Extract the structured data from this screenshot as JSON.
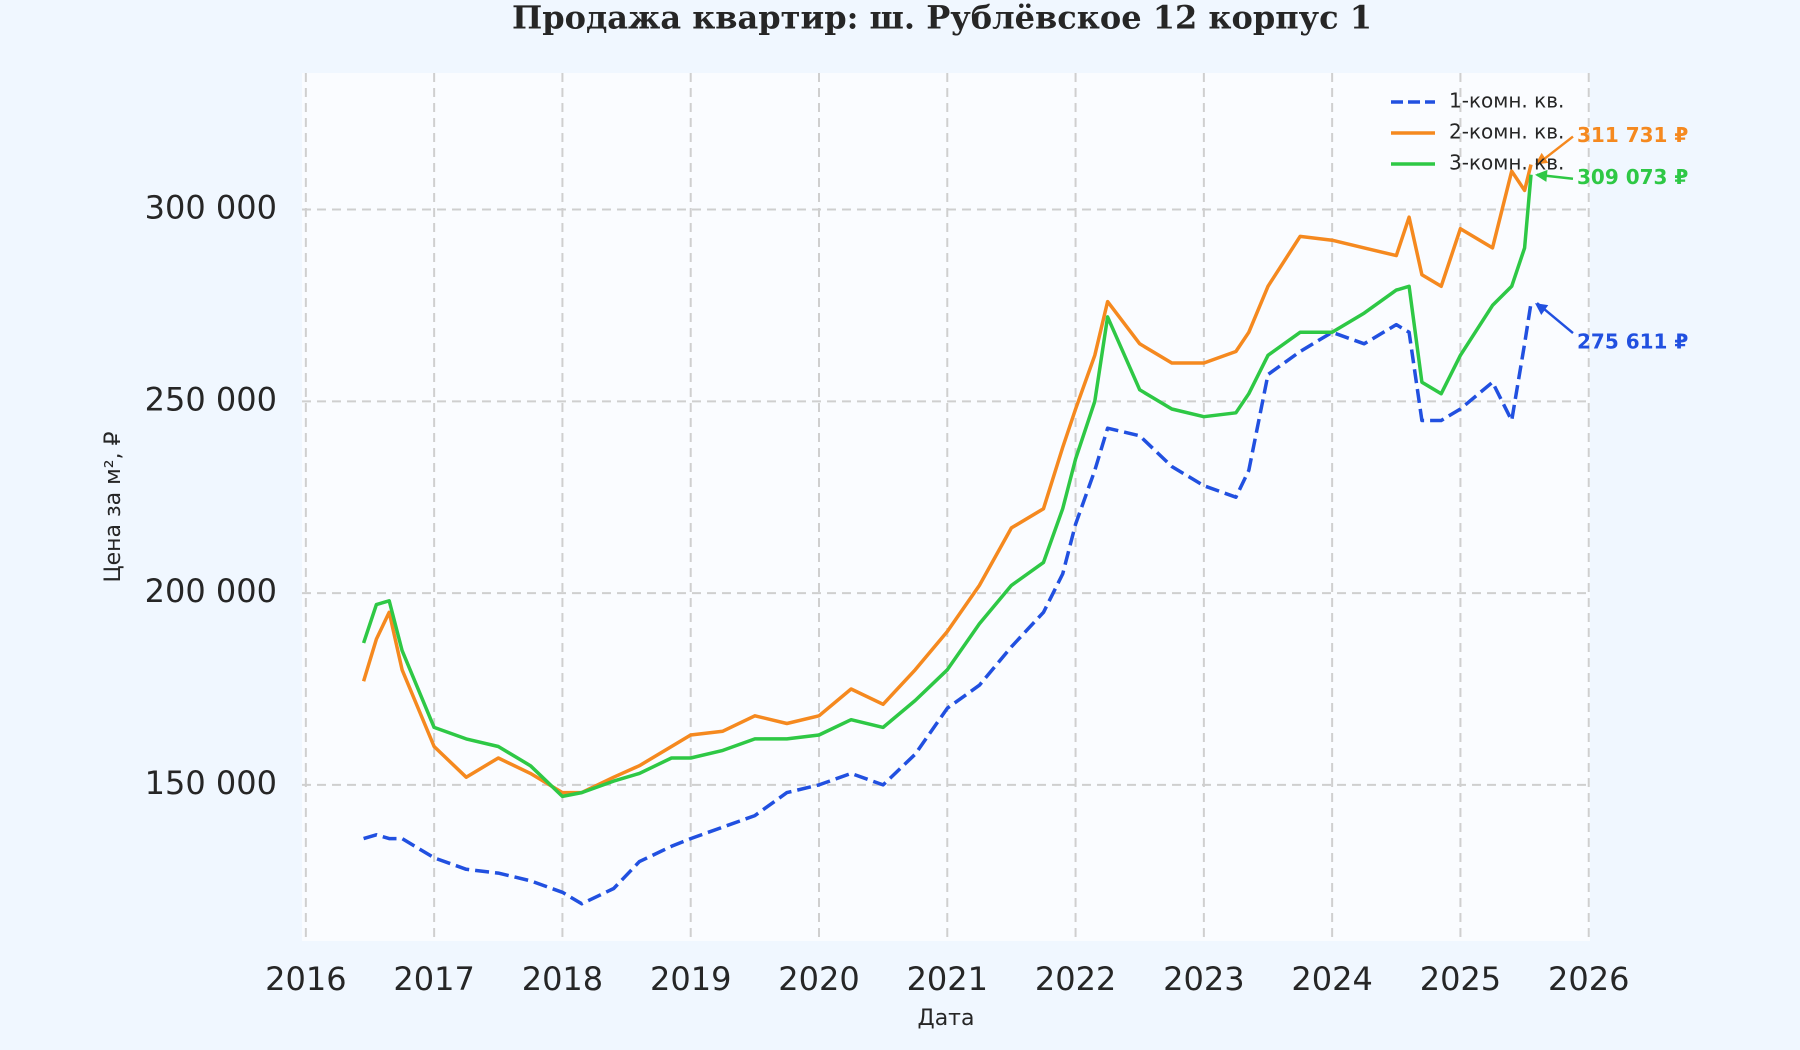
{
  "chart_data": {
    "type": "line",
    "title": "Продажа квартир: ш. Рублёвское 12 корпус 1",
    "x_label": "Дата",
    "y_label": "Цена за м², ₽",
    "x": [
      2016.45,
      2016.55,
      2016.65,
      2016.75,
      2017.0,
      2017.25,
      2017.5,
      2017.75,
      2018.0,
      2018.15,
      2018.4,
      2018.6,
      2018.85,
      2019.0,
      2019.25,
      2019.5,
      2019.75,
      2020.0,
      2020.25,
      2020.5,
      2020.75,
      2021.0,
      2021.25,
      2021.5,
      2021.75,
      2021.9,
      2022.0,
      2022.15,
      2022.25,
      2022.5,
      2022.75,
      2023.0,
      2023.25,
      2023.35,
      2023.5,
      2023.75,
      2024.0,
      2024.25,
      2024.5,
      2024.6,
      2024.7,
      2024.85,
      2025.0,
      2025.25,
      2025.4,
      2025.5,
      2025.55
    ],
    "series": [
      {
        "name": "1-комн. кв.",
        "color": "#2150e0",
        "linestyle": "dashed",
        "values": [
          136000,
          137000,
          136000,
          136000,
          131000,
          128000,
          127000,
          125000,
          122000,
          119000,
          123000,
          130000,
          134000,
          136000,
          139000,
          142000,
          148000,
          150000,
          153000,
          150000,
          158000,
          170000,
          176000,
          186000,
          195000,
          205000,
          218000,
          232000,
          243000,
          241000,
          233000,
          228000,
          225000,
          232000,
          257000,
          263000,
          268000,
          265000,
          270000,
          268000,
          245000,
          245000,
          248000,
          255000,
          245000,
          265000,
          275611
        ],
        "value_labels": [
          null,
          null,
          null,
          null,
          null,
          null,
          null,
          null,
          null,
          null,
          null,
          null,
          null,
          null,
          null,
          null,
          null,
          null,
          null,
          null,
          null,
          null,
          null,
          null,
          null,
          null,
          null,
          null,
          null,
          null,
          null,
          null,
          null,
          null,
          null,
          null,
          null,
          null,
          null,
          null,
          null,
          null,
          null,
          null,
          null,
          null,
          "275 611 ₽"
        ]
      },
      {
        "name": "2-комн. кв.",
        "color": "#f5891f",
        "linestyle": "solid",
        "values": [
          177000,
          188000,
          195000,
          180000,
          160000,
          152000,
          157000,
          153000,
          148000,
          148000,
          152000,
          155000,
          160000,
          163000,
          164000,
          168000,
          166000,
          168000,
          175000,
          171000,
          180000,
          190000,
          202000,
          217000,
          222000,
          238000,
          248000,
          262000,
          276000,
          265000,
          260000,
          260000,
          263000,
          268000,
          280000,
          293000,
          292000,
          290000,
          288000,
          298000,
          283000,
          280000,
          295000,
          290000,
          310000,
          305000,
          311731
        ],
        "value_labels": [
          null,
          null,
          null,
          null,
          null,
          null,
          null,
          null,
          null,
          null,
          null,
          null,
          null,
          null,
          null,
          null,
          null,
          null,
          null,
          null,
          null,
          null,
          null,
          null,
          null,
          null,
          null,
          null,
          null,
          null,
          null,
          null,
          null,
          null,
          null,
          null,
          null,
          null,
          null,
          null,
          null,
          null,
          null,
          null,
          null,
          null,
          "311 731 ₽"
        ]
      },
      {
        "name": "3-комн. кв.",
        "color": "#2ec845",
        "linestyle": "solid",
        "values": [
          187000,
          197000,
          198000,
          185000,
          165000,
          162000,
          160000,
          155000,
          147000,
          148000,
          151000,
          153000,
          157000,
          157000,
          159000,
          162000,
          162000,
          163000,
          167000,
          165000,
          172000,
          180000,
          192000,
          202000,
          208000,
          222000,
          235000,
          250000,
          272000,
          253000,
          248000,
          246000,
          247000,
          252000,
          262000,
          268000,
          268000,
          273000,
          279000,
          280000,
          255000,
          252000,
          262000,
          275000,
          280000,
          290000,
          309073
        ],
        "value_labels": [
          null,
          null,
          null,
          null,
          null,
          null,
          null,
          null,
          null,
          null,
          null,
          null,
          null,
          null,
          null,
          null,
          null,
          null,
          null,
          null,
          null,
          null,
          null,
          null,
          null,
          null,
          null,
          null,
          null,
          null,
          null,
          null,
          null,
          null,
          null,
          null,
          null,
          null,
          null,
          null,
          null,
          null,
          null,
          null,
          null,
          null,
          "309 073 ₽"
        ]
      }
    ],
    "xlim": [
      2015.97,
      2026.01
    ],
    "xticks": [
      2016,
      2017,
      2018,
      2019,
      2020,
      2021,
      2022,
      2023,
      2024,
      2025,
      2026
    ],
    "ylim": [
      109300,
      335600
    ],
    "yticks": [
      {
        "value": 150000,
        "label": "150 000"
      },
      {
        "value": 200000,
        "label": "200 000"
      },
      {
        "value": 250000,
        "label": "250 000"
      },
      {
        "value": 300000,
        "label": "300 000"
      }
    ],
    "grid": true,
    "legend": "upper right"
  }
}
